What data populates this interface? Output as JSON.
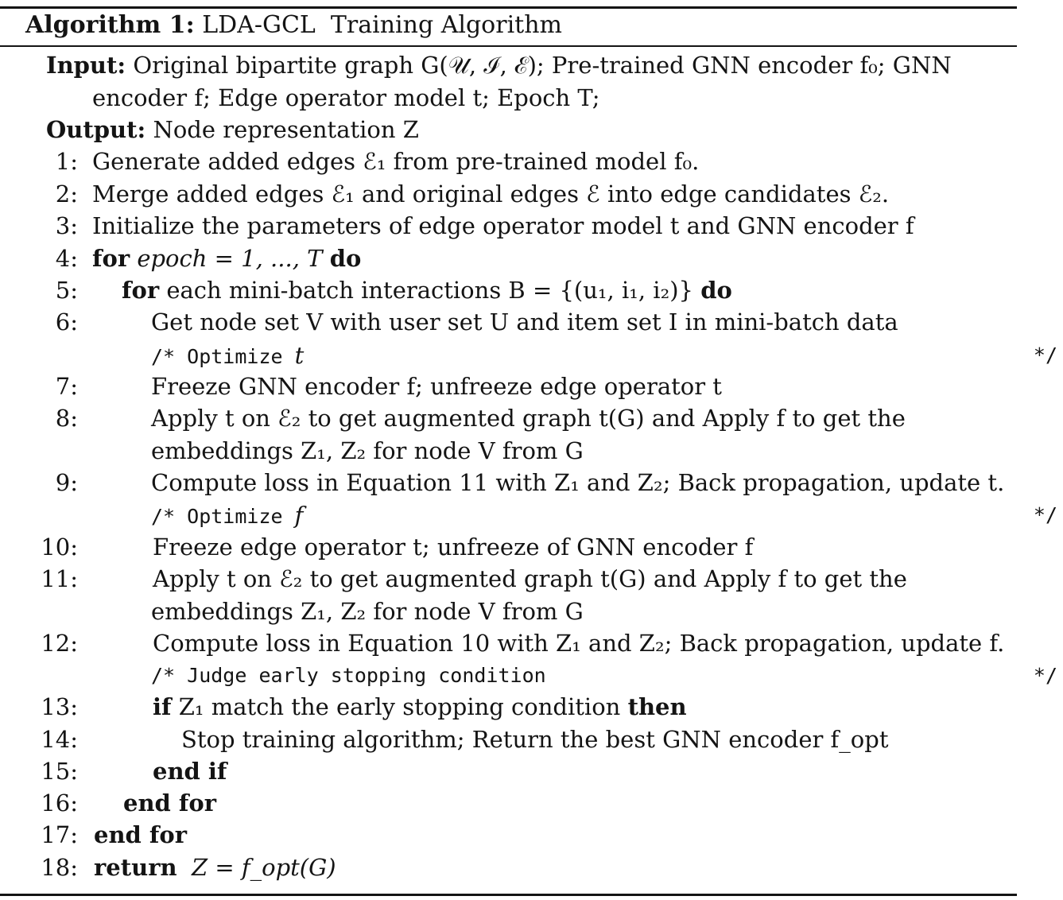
{
  "header": {
    "label": "Algorithm 1:",
    "title": "LDA-GCL  Training Algorithm"
  },
  "input": {
    "label": "Input:",
    "text_line1": "Original bipartite graph G(𝒰, ℐ, ℰ); Pre-trained GNN encoder f₀; GNN",
    "text_line2": "encoder f; Edge operator model t; Epoch T;"
  },
  "output": {
    "label": "Output:",
    "text": "Node representation Z"
  },
  "steps": [
    {
      "n": "1:",
      "text": "Generate added edges ℰ₁ from pre-trained model f₀."
    },
    {
      "n": "2:",
      "text": "Merge added edges ℰ₁ and original edges ℰ into edge candidates ℰ₂."
    },
    {
      "n": "3:",
      "text": "Initialize the parameters of edge operator model t and GNN encoder f"
    },
    {
      "n": "4:",
      "kw": "for",
      "text": "epoch = 1, ..., T",
      "kw2": "do"
    },
    {
      "n": "5:",
      "kw": "for",
      "text": "each mini-batch interactions B = {(u₁, i₁, i₂)}",
      "kw2": "do"
    },
    {
      "n": "6:",
      "text": "Get node set V with user set U and item set I in mini-batch data"
    },
    {
      "n": "7:",
      "text": "Freeze GNN encoder f; unfreeze edge operator t"
    },
    {
      "n": "8:",
      "text": "Apply t on ℰ₂ to get augmented graph t(G) and Apply f to get the",
      "text2": "embeddings Z₁, Z₂ for node V from G"
    },
    {
      "n": "9:",
      "text": "Compute loss in Equation 11 with Z₁ and Z₂; Back propagation, update t."
    },
    {
      "n": "10:",
      "text": "Freeze edge operator t; unfreeze of GNN encoder f"
    },
    {
      "n": "11:",
      "text": "Apply t on ℰ₂ to get augmented graph t(G) and Apply f to get the",
      "text2": "embeddings Z₁, Z₂ for node V from G"
    },
    {
      "n": "12:",
      "text": "Compute loss in Equation 10 with Z₁ and Z₂; Back propagation, update f."
    },
    {
      "n": "13:",
      "kw": "if",
      "text": "Z₁ match the early stopping condition",
      "kw2": "then"
    },
    {
      "n": "14:",
      "text": "Stop training algorithm; Return the best GNN encoder f_opt"
    },
    {
      "n": "15:",
      "kw": "end if"
    },
    {
      "n": "16:",
      "kw": "end for"
    },
    {
      "n": "17:",
      "kw": "end for"
    },
    {
      "n": "18:",
      "kw": "return",
      "text": "Z = f_opt(G)"
    }
  ],
  "comments": [
    {
      "open": "/* Optimize",
      "arg": "t",
      "close": "*/"
    },
    {
      "open": "/* Optimize",
      "arg": "f",
      "close": "*/"
    },
    {
      "open": "/* Judge early stopping condition",
      "arg": "",
      "close": "*/"
    }
  ]
}
